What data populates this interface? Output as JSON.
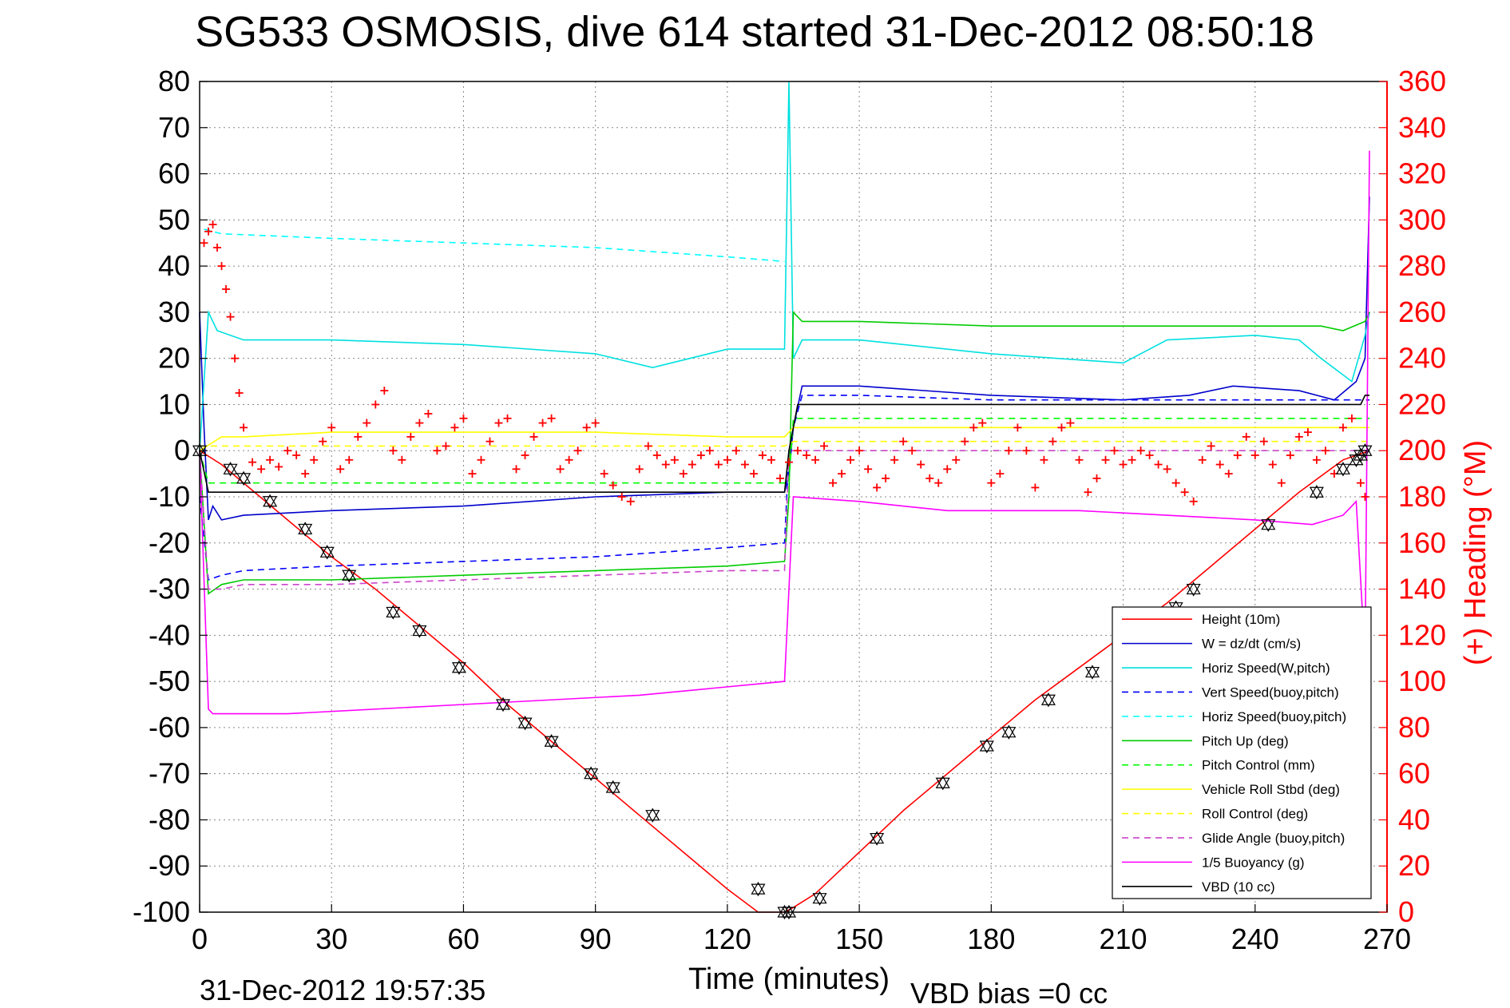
{
  "chart_data": {
    "type": "line",
    "title": "SG533 OSMOSIS, dive 614 started 31-Dec-2012 08:50:18",
    "xlabel": "Time (minutes)",
    "ylabel_right": "(+) Heading (°M)",
    "xlim": [
      0,
      270
    ],
    "ylim": [
      -100,
      80
    ],
    "ylim_right": [
      0,
      360
    ],
    "x_ticks": [
      0,
      30,
      60,
      90,
      120,
      150,
      180,
      210,
      240,
      270
    ],
    "y_ticks": [
      -100,
      -90,
      -80,
      -70,
      -60,
      -50,
      -40,
      -30,
      -20,
      -10,
      0,
      10,
      20,
      30,
      40,
      50,
      60,
      70,
      80
    ],
    "y_ticks_right": [
      0,
      20,
      40,
      60,
      80,
      100,
      120,
      140,
      160,
      180,
      200,
      220,
      240,
      260,
      280,
      300,
      320,
      340,
      360
    ],
    "grid": true,
    "legend_position": "bottom-right",
    "timestamp": "31-Dec-2012 19:57:35",
    "vbd_bias": "VBD bias =0 cc",
    "colors": {
      "height": "#ff0000",
      "w": "#0000cc",
      "horiz_w": "#00e0e0",
      "vert_buoy": "#0000ff",
      "horiz_buoy": "#00ffff",
      "pitch": "#00cc00",
      "pitch_ctrl": "#00ff00",
      "roll": "#ffff00",
      "roll_ctrl": "#ffff00",
      "glide": "#cc44cc",
      "buoy": "#ff00ff",
      "vbd": "#000000",
      "heading": "#ff0000"
    },
    "series": [
      {
        "name": "Height (10m)",
        "key": "height",
        "dash": "",
        "x": [
          0,
          5,
          10,
          20,
          30,
          40,
          50,
          60,
          70,
          80,
          90,
          100,
          110,
          120,
          127,
          133,
          135,
          140,
          150,
          160,
          170,
          180,
          190,
          200,
          210,
          220,
          230,
          240,
          250,
          260,
          266
        ],
        "y": [
          0,
          -3,
          -7,
          -15,
          -23,
          -30,
          -38,
          -46,
          -55,
          -63,
          -71,
          -79,
          -87,
          -95,
          -100,
          -100,
          -99,
          -96,
          -87,
          -78,
          -70,
          -62,
          -54,
          -47,
          -40,
          -33,
          -25,
          -17,
          -9,
          -2,
          0
        ]
      },
      {
        "name": "W = dz/dt (cm/s)",
        "key": "w",
        "dash": "",
        "x": [
          0,
          1,
          2,
          3,
          5,
          10,
          30,
          60,
          90,
          120,
          133,
          134,
          135,
          137,
          150,
          180,
          210,
          225,
          235,
          250,
          258,
          263,
          265,
          266
        ],
        "y": [
          30,
          5,
          -15,
          -12,
          -15,
          -14,
          -13,
          -12,
          -10,
          -9,
          -9,
          -5,
          5,
          14,
          14,
          12,
          11,
          12,
          14,
          13,
          11,
          15,
          20,
          55
        ]
      },
      {
        "name": "Horiz Speed(W,pitch)",
        "key": "horiz_w",
        "dash": "",
        "x": [
          0,
          2,
          4,
          10,
          30,
          60,
          90,
          103,
          120,
          133,
          134,
          135,
          137,
          150,
          180,
          210,
          220,
          240,
          250,
          255,
          262,
          265,
          266
        ],
        "y": [
          0,
          30,
          26,
          24,
          24,
          23,
          21,
          18,
          22,
          22,
          80,
          20,
          24,
          24,
          21,
          19,
          24,
          25,
          24,
          20,
          15,
          25,
          30
        ]
      },
      {
        "name": "Vert Speed(buoy,pitch)",
        "key": "vert_buoy",
        "dash": "8,6",
        "x": [
          0,
          2,
          5,
          10,
          30,
          60,
          90,
          120,
          133,
          134,
          135,
          137,
          150,
          180,
          210,
          240,
          266
        ],
        "y": [
          -10,
          -28,
          -27,
          -26,
          -25,
          -24,
          -23,
          -21,
          -20,
          0,
          5,
          12,
          12,
          11,
          11,
          11,
          11
        ]
      },
      {
        "name": "Horiz Speed(buoy,pitch)",
        "key": "horiz_buoy",
        "dash": "8,6",
        "x": [
          1,
          5,
          30,
          60,
          90,
          120,
          133
        ],
        "y": [
          48,
          47,
          46,
          45,
          44,
          42,
          41
        ]
      },
      {
        "name": "Pitch Up (deg)",
        "key": "pitch",
        "dash": "",
        "x": [
          0,
          2,
          5,
          10,
          30,
          60,
          90,
          120,
          133,
          134,
          135,
          137,
          150,
          180,
          210,
          240,
          255,
          260,
          265,
          266
        ],
        "y": [
          0,
          -31,
          -29,
          -28,
          -28,
          -27,
          -26,
          -25,
          -24,
          -10,
          30,
          28,
          28,
          27,
          27,
          27,
          27,
          26,
          28,
          30
        ]
      },
      {
        "name": "Pitch Control (mm)",
        "key": "pitch_ctrl",
        "dash": "8,6",
        "x": [
          0,
          2,
          134,
          135,
          266
        ],
        "y": [
          0,
          -7,
          -7,
          7,
          7
        ]
      },
      {
        "name": "Vehicle Roll Stbd (deg)",
        "key": "roll",
        "dash": "",
        "x": [
          0,
          5,
          10,
          30,
          60,
          90,
          120,
          133,
          135,
          140,
          160,
          180,
          210,
          240,
          266
        ],
        "y": [
          0,
          3,
          3,
          4,
          4,
          4,
          3,
          3,
          5,
          5,
          5,
          5,
          5,
          5,
          5
        ]
      },
      {
        "name": "Roll Control (deg)",
        "key": "roll_ctrl",
        "dash": "8,6",
        "x": [
          0,
          133,
          135,
          266
        ],
        "y": [
          1,
          1,
          2,
          2
        ]
      },
      {
        "name": "Glide Angle (buoy,pitch)",
        "key": "glide",
        "dash": "8,6",
        "x": [
          0,
          2,
          5,
          10,
          30,
          60,
          90,
          120,
          133,
          134,
          135,
          266
        ],
        "y": [
          0,
          -30,
          -30,
          -29,
          -29,
          -28,
          -27,
          -26,
          -26,
          0,
          0,
          0
        ]
      },
      {
        "name": "1/5 Buoyancy (g)",
        "key": "buoy",
        "dash": "",
        "x": [
          0,
          2,
          3,
          5,
          20,
          60,
          100,
          133,
          135,
          150,
          170,
          200,
          240,
          253,
          260,
          263,
          265,
          266
        ],
        "y": [
          0,
          -56,
          -57,
          -57,
          -57,
          -55,
          -53,
          -50,
          -10,
          -11,
          -13,
          -13,
          -15,
          -16,
          -14,
          -11,
          -45,
          65
        ]
      },
      {
        "name": "VBD (10 cc)",
        "key": "vbd",
        "dash": "",
        "x": [
          0,
          2,
          5,
          133,
          134,
          136,
          137,
          264,
          265,
          266
        ],
        "y": [
          0,
          -9,
          -9,
          -9,
          0,
          10,
          10,
          10,
          12,
          12
        ]
      }
    ],
    "heading_right_axis": {
      "name": "(+) Heading",
      "key": "heading",
      "x": [
        1,
        2,
        3,
        4,
        5,
        6,
        7,
        8,
        9,
        10,
        12,
        14,
        16,
        18,
        20,
        22,
        24,
        26,
        28,
        30,
        32,
        34,
        36,
        38,
        40,
        42,
        44,
        46,
        48,
        50,
        52,
        54,
        56,
        58,
        60,
        62,
        64,
        66,
        68,
        70,
        72,
        74,
        76,
        78,
        80,
        82,
        84,
        86,
        88,
        90,
        92,
        94,
        96,
        98,
        100,
        102,
        104,
        106,
        108,
        110,
        112,
        114,
        116,
        118,
        120,
        122,
        124,
        126,
        128,
        130,
        132,
        134,
        136,
        138,
        140,
        142,
        144,
        146,
        148,
        150,
        152,
        154,
        156,
        158,
        160,
        162,
        164,
        166,
        168,
        170,
        172,
        174,
        176,
        178,
        180,
        182,
        184,
        186,
        188,
        190,
        192,
        194,
        196,
        198,
        200,
        202,
        204,
        206,
        208,
        210,
        212,
        214,
        216,
        218,
        220,
        222,
        224,
        226,
        228,
        230,
        232,
        234,
        236,
        238,
        240,
        242,
        244,
        246,
        248,
        250,
        252,
        254,
        256,
        258,
        260,
        262,
        264,
        265
      ],
      "y": [
        290,
        295,
        298,
        288,
        280,
        270,
        258,
        240,
        225,
        210,
        195,
        192,
        196,
        193,
        200,
        198,
        190,
        196,
        204,
        210,
        192,
        196,
        206,
        212,
        220,
        226,
        200,
        196,
        206,
        212,
        216,
        200,
        202,
        210,
        214,
        190,
        196,
        204,
        212,
        214,
        192,
        198,
        206,
        212,
        214,
        192,
        196,
        200,
        210,
        212,
        190,
        185,
        180,
        178,
        192,
        202,
        198,
        194,
        196,
        190,
        194,
        198,
        200,
        194,
        196,
        200,
        194,
        190,
        198,
        196,
        188,
        195,
        200,
        198,
        196,
        202,
        186,
        190,
        196,
        200,
        192,
        184,
        188,
        196,
        204,
        200,
        194,
        188,
        186,
        192,
        196,
        204,
        210,
        212,
        186,
        190,
        200,
        210,
        200,
        184,
        196,
        204,
        210,
        212,
        196,
        182,
        188,
        196,
        200,
        194,
        196,
        200,
        198,
        194,
        192,
        186,
        182,
        178,
        196,
        202,
        194,
        190,
        198,
        206,
        198,
        204,
        194,
        186,
        198,
        206,
        208,
        196,
        200,
        190,
        210,
        214,
        186,
        180
      ]
    },
    "depth_markers": {
      "x": [
        0,
        7,
        10,
        16,
        24,
        29,
        34,
        44,
        50,
        59,
        69,
        74,
        80,
        89,
        94,
        103,
        127,
        133,
        134,
        141,
        154,
        169,
        179,
        184,
        193,
        203,
        222,
        226,
        243,
        254,
        260,
        263,
        264,
        265
      ],
      "y": [
        0,
        -4,
        -6,
        -11,
        -17,
        -22,
        -27,
        -35,
        -39,
        -47,
        -55,
        -59,
        -63,
        -70,
        -73,
        -79,
        -95,
        -100,
        -100,
        -97,
        -84,
        -72,
        -64,
        -61,
        -54,
        -48,
        -34,
        -30,
        -16,
        -9,
        -4,
        -2,
        -1,
        0
      ]
    },
    "legend_entries": [
      {
        "label": "Height (10m)",
        "key": "height",
        "dash": ""
      },
      {
        "label": "W = dz/dt (cm/s)",
        "key": "w",
        "dash": ""
      },
      {
        "label": "Horiz Speed(W,pitch)",
        "key": "horiz_w",
        "dash": ""
      },
      {
        "label": "Vert Speed(buoy,pitch)",
        "key": "vert_buoy",
        "dash": "8,6"
      },
      {
        "label": "Horiz Speed(buoy,pitch)",
        "key": "horiz_buoy",
        "dash": "8,6"
      },
      {
        "label": "Pitch Up (deg)",
        "key": "pitch",
        "dash": ""
      },
      {
        "label": "Pitch Control (mm)",
        "key": "pitch_ctrl",
        "dash": "8,6"
      },
      {
        "label": "Vehicle Roll Stbd (deg)",
        "key": "roll",
        "dash": ""
      },
      {
        "label": "Roll Control (deg)",
        "key": "roll_ctrl",
        "dash": "8,6"
      },
      {
        "label": "Glide Angle (buoy,pitch)",
        "key": "glide",
        "dash": "8,6"
      },
      {
        "label": "1/5 Buoyancy (g)",
        "key": "buoy",
        "dash": ""
      },
      {
        "label": "VBD (10 cc)",
        "key": "vbd",
        "dash": ""
      }
    ]
  }
}
